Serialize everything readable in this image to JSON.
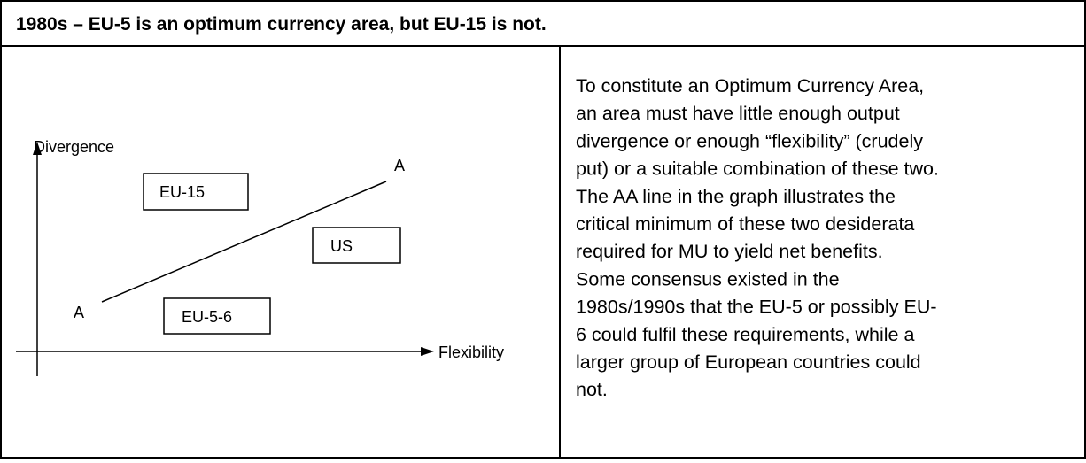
{
  "header": {
    "title": "1980s – EU-5 is an optimum currency area, but EU-15 is not."
  },
  "diagram": {
    "y_axis_label": "Divergence",
    "x_axis_label": "Flexibility",
    "line_start_label": "A",
    "line_end_label": "A",
    "boxes": [
      "EU-15",
      "US",
      "EU-5-6"
    ]
  },
  "text": {
    "lines": [
      "To constitute an Optimum Currency Area,",
      "an area must have little enough output",
      "divergence or enough “flexibility” (crudely",
      "put) or a suitable combination of these two.",
      "The AA line in the graph illustrates the",
      "critical minimum of these two desiderata",
      "required for MU to yield net benefits.",
      "Some consensus existed in the",
      "1980s/1990s that the EU-5 or possibly EU-",
      "6 could fulfil these requirements, while a",
      "larger group of European countries could",
      "not."
    ]
  }
}
